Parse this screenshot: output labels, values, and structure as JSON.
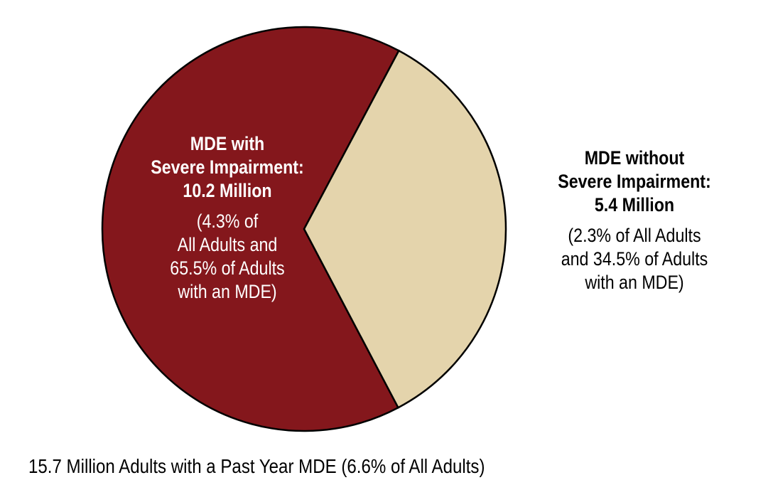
{
  "chart_data": {
    "type": "pie",
    "title": "",
    "slices": [
      {
        "name": "MDE with Severe Impairment",
        "value": 10.2,
        "unit": "Million",
        "percent_of_mde": 65.5,
        "color": "#84171c",
        "heading": [
          "MDE with",
          "Severe Impairment:",
          "10.2 Million"
        ],
        "detail": [
          "(4.3% of",
          "All Adults and",
          "65.5% of Adults",
          "with an MDE)"
        ]
      },
      {
        "name": "MDE without Severe Impairment",
        "value": 5.4,
        "unit": "Million",
        "percent_of_mde": 34.5,
        "color": "#e4d4ac",
        "heading": [
          "MDE without",
          "Severe Impairment:",
          "5.4 Million"
        ],
        "detail": [
          "(2.3% of All Adults",
          "and 34.5% of Adults",
          "with an MDE)"
        ]
      }
    ],
    "footnote": "15.7 Million Adults with a Past Year MDE (6.6% of All Adults)"
  }
}
